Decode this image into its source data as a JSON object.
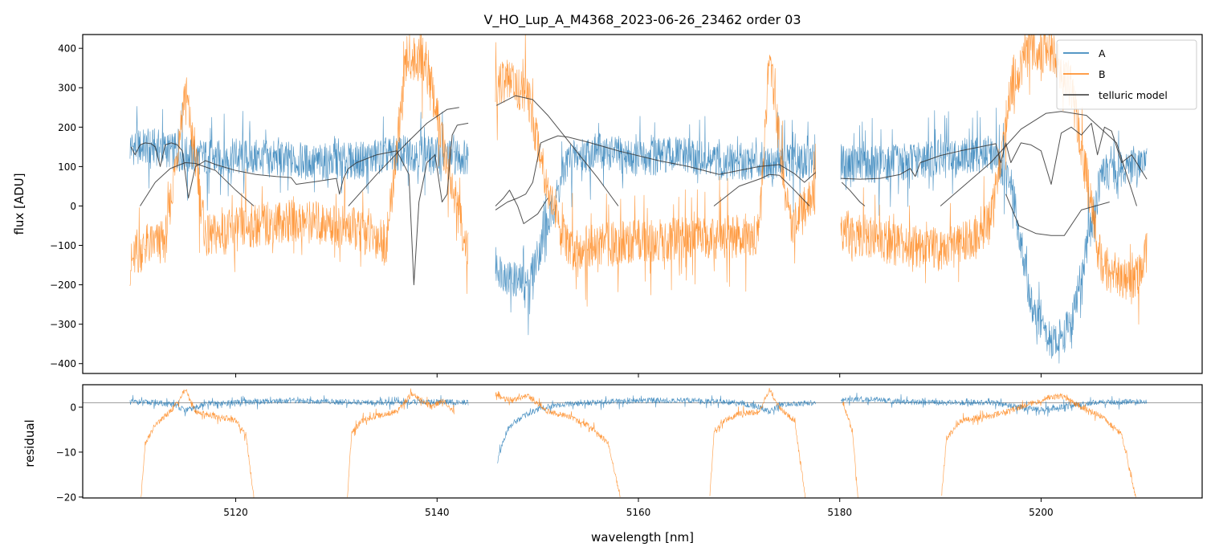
{
  "title": "V_HO_Lup_A_M4368_2023-06-26_23462  order 03",
  "colors": {
    "A": "#1f77b4",
    "B": "#ff7f0e",
    "telluric": "#333333",
    "refline": "#808080"
  },
  "chart_data": [
    {
      "type": "line",
      "panel": "flux",
      "ylabel": "flux [ADU]",
      "xlim": [
        5104.8,
        5216.0
      ],
      "ylim": [
        -425,
        435
      ],
      "yticks": [
        -400,
        -300,
        -200,
        -100,
        0,
        100,
        200,
        300,
        400
      ],
      "yticklabels": [
        "−400",
        "−300",
        "−200",
        "−100",
        "0",
        "100",
        "200",
        "300",
        "400"
      ],
      "xticks": [
        5120,
        5140,
        5160,
        5180,
        5200
      ],
      "legend": {
        "position": "top-right",
        "entries": [
          "A",
          "B",
          "telluric model"
        ]
      },
      "series": [
        {
          "name": "A",
          "segments": [
            {
              "x": [
                5109.5,
                5112,
                5115,
                5118,
                5120,
                5124,
                5128,
                5132,
                5135,
                5138,
                5141,
                5143.1
              ],
              "y": [
                150,
                150,
                130,
                120,
                125,
                120,
                110,
                115,
                130,
                135,
                125,
                125
              ]
            },
            {
              "x": [
                5145.8,
                5147,
                5149,
                5151,
                5153,
                5156,
                5160,
                5164,
                5168,
                5172,
                5175,
                5177.6
              ],
              "y": [
                -150,
                -180,
                -200,
                -50,
                120,
                140,
                120,
                130,
                110,
                115,
                110,
                115
              ]
            },
            {
              "x": [
                5180.1,
                5183,
                5186,
                5189,
                5192,
                5195,
                5197,
                5199,
                5201,
                5203,
                5206,
                5210.5
              ],
              "y": [
                110,
                105,
                110,
                120,
                125,
                135,
                60,
                -250,
                -350,
                -300,
                80,
                115
              ]
            }
          ]
        },
        {
          "name": "B",
          "segments": [
            {
              "x": [
                5109.5,
                5111,
                5113,
                5115,
                5117,
                5120,
                5124,
                5128,
                5132,
                5135,
                5137,
                5139,
                5141,
                5143.1
              ],
              "y": [
                -150,
                -100,
                -90,
                300,
                -80,
                -60,
                -40,
                -40,
                -60,
                -90,
                380,
                360,
                100,
                -120
              ]
            },
            {
              "x": [
                5145.8,
                5147,
                5149,
                5151,
                5153,
                5156,
                5160,
                5164,
                5168,
                5172,
                5173,
                5175,
                5177.6
              ],
              "y": [
                300,
                320,
                280,
                50,
                -110,
                -100,
                -90,
                -85,
                -80,
                -70,
                380,
                -50,
                30
              ]
            },
            {
              "x": [
                5180.1,
                5183,
                5186,
                5189,
                5192,
                5195,
                5197,
                5199,
                5201,
                5203,
                5206,
                5209,
                5210.5
              ],
              "y": [
                -60,
                -80,
                -100,
                -110,
                -100,
                -40,
                300,
                400,
                390,
                300,
                -150,
                -200,
                -120
              ]
            }
          ]
        },
        {
          "name": "telluric model",
          "segments": [
            {
              "x": [
                5109.6,
                5110,
                5110.5,
                5111,
                5111.6,
                5112,
                5112.5,
                5113,
                5113.6,
                5114.2,
                5114.7,
                5115.3,
                5116,
                5117,
                5118,
                5120,
                5122,
                5124,
                5125.5,
                5126,
                5128,
                5130,
                5130.3,
                5130.7,
                5131.2,
                5132,
                5134,
                5136,
                5137.2,
                5137.7,
                5138.2,
                5139,
                5139.8,
                5140.5,
                5141,
                5141.5,
                5142,
                5143.1
              ],
              "y": [
                150,
                130,
                155,
                160,
                158,
                150,
                100,
                155,
                160,
                155,
                140,
                20,
                100,
                115,
                105,
                90,
                80,
                75,
                72,
                55,
                62,
                70,
                30,
                70,
                95,
                110,
                130,
                140,
                80,
                -200,
                10,
                110,
                130,
                10,
                30,
                180,
                205,
                210
              ]
            },
            {
              "x": [
                5145.8,
                5147,
                5148,
                5148.8,
                5149.5,
                5150.3,
                5151,
                5152,
                5153,
                5155,
                5158,
                5162,
                5165,
                5168,
                5170,
                5172,
                5174,
                5175.5,
                5176.5,
                5177.6
              ],
              "y": [
                -10,
                10,
                20,
                30,
                60,
                160,
                168,
                178,
                175,
                162,
                140,
                115,
                100,
                80,
                90,
                100,
                105,
                82,
                60,
                85
              ]
            },
            {
              "x": [
                5180.1,
                5182,
                5184,
                5186,
                5187,
                5187.5,
                5188,
                5190,
                5192,
                5194,
                5195.5,
                5196,
                5196.5,
                5197,
                5198,
                5199,
                5200,
                5201,
                5202,
                5203,
                5204,
                5205,
                5205.6,
                5206.3,
                5207,
                5208,
                5209,
                5210.5
              ],
              "y": [
                70,
                68,
                70,
                80,
                95,
                75,
                110,
                128,
                140,
                150,
                158,
                110,
                160,
                110,
                160,
                155,
                140,
                55,
                185,
                200,
                180,
                210,
                130,
                200,
                190,
                110,
                130,
                68
              ]
            },
            {
              "x": [
                5110.5,
                5112,
                5113.5,
                5114.5,
                5115,
                5116,
                5118,
                5120,
                5121.8
              ],
              "y": [
                0,
                60,
                95,
                105,
                110,
                108,
                90,
                40,
                0
              ]
            },
            {
              "x": [
                5131.2,
                5134,
                5137,
                5139,
                5141,
                5142.2
              ],
              "y": [
                0,
                80,
                160,
                210,
                245,
                250
              ]
            },
            {
              "x": [
                5145.8,
                5146.6,
                5147.2,
                5148,
                5148.6,
                5150,
                5151
              ],
              "y": [
                0,
                20,
                40,
                0,
                -45,
                -20,
                20
              ]
            },
            {
              "x": [
                5145.9,
                5147.8,
                5149.5,
                5151,
                5153.5,
                5156,
                5158
              ],
              "y": [
                255,
                280,
                270,
                230,
                150,
                70,
                0
              ]
            },
            {
              "x": [
                5167.5,
                5170,
                5172.2,
                5173,
                5174,
                5175.5,
                5177
              ],
              "y": [
                0,
                50,
                70,
                80,
                78,
                40,
                0
              ]
            },
            {
              "x": [
                5180.2,
                5181,
                5182,
                5182.5
              ],
              "y": [
                60,
                40,
                10,
                0
              ]
            },
            {
              "x": [
                5190,
                5195,
                5198,
                5200.5,
                5202,
                5204.5,
                5207.5,
                5209.5
              ],
              "y": [
                0,
                110,
                195,
                235,
                240,
                230,
                160,
                0
              ]
            },
            {
              "x": [
                5196.5,
                5197.8,
                5199.5,
                5201,
                5202.3,
                5204,
                5206.8
              ],
              "y": [
                30,
                -50,
                -70,
                -75,
                -75,
                -10,
                10
              ]
            }
          ]
        }
      ]
    },
    {
      "type": "line",
      "panel": "residual",
      "xlabel": "wavelength [nm]",
      "ylabel": "residual",
      "xlim": [
        5104.8,
        5216.0
      ],
      "ylim": [
        -20.2,
        5
      ],
      "yticks": [
        -20,
        -10,
        0
      ],
      "yticklabels": [
        "−20",
        "−10",
        "0"
      ],
      "xticks": [
        5120,
        5140,
        5160,
        5180,
        5200
      ],
      "xticklabels": [
        "5120",
        "5140",
        "5160",
        "5180",
        "5200"
      ],
      "reference_line": 1,
      "series": [
        {
          "name": "A",
          "segments": [
            {
              "x": [
                5109.5,
                5112,
                5114,
                5115,
                5117,
                5120,
                5125,
                5130,
                5135,
                5140,
                5143.1
              ],
              "y": [
                1.2,
                1,
                0.5,
                -0.8,
                0.7,
                1,
                1.5,
                1.2,
                1,
                1.2,
                1
              ]
            },
            {
              "x": [
                5146,
                5146.5,
                5147,
                5148,
                5149,
                5150,
                5152,
                5155,
                5160,
                5165,
                5170,
                5172,
                5173,
                5174,
                5177.6
              ],
              "y": [
                -12,
                -8,
                -5,
                -3,
                -1.5,
                -0.5,
                0.5,
                1,
                1.5,
                1.5,
                1,
                0,
                -1,
                0.5,
                1
              ]
            },
            {
              "x": [
                5180.1,
                5183,
                5186,
                5190,
                5195,
                5198,
                5200,
                5202,
                5205,
                5208,
                5210.5
              ],
              "y": [
                1.5,
                1.8,
                1.2,
                1,
                1,
                0,
                -0.5,
                0,
                1,
                1.2,
                1.2
              ]
            }
          ]
        },
        {
          "name": "B",
          "segments": [
            {
              "x": [
                5110.6,
                5111,
                5112,
                5113.5,
                5114.5,
                5115,
                5116,
                5118,
                5120,
                5121,
                5121.8
              ],
              "y": [
                -20,
                -8,
                -4,
                -1,
                2,
                4,
                -1,
                -2,
                -3,
                -6,
                -20
              ]
            },
            {
              "x": [
                5131.1,
                5131.5,
                5132.5,
                5134,
                5136,
                5137.5,
                5138.5,
                5139.5,
                5140.5,
                5141.7
              ],
              "y": [
                -20,
                -6,
                -3,
                -2,
                -1,
                3,
                1.5,
                0,
                1.5,
                -1
              ]
            },
            {
              "x": [
                5145.8,
                5146.5,
                5147.5,
                5149,
                5151,
                5153,
                5155,
                5157,
                5158.2
              ],
              "y": [
                3,
                2,
                1.5,
                2.5,
                -1,
                -2,
                -4,
                -8,
                -20
              ]
            },
            {
              "x": [
                5167.1,
                5167.5,
                5168.5,
                5170,
                5172,
                5173,
                5174,
                5175.5,
                5176.6
              ],
              "y": [
                -20,
                -6,
                -3,
                -1.5,
                -1,
                4,
                0,
                -3,
                -20
              ]
            },
            {
              "x": [
                5180.3,
                5180.8,
                5181.3,
                5181.8
              ],
              "y": [
                1,
                -2,
                -6,
                -20
              ]
            },
            {
              "x": [
                5190.1,
                5190.6,
                5192,
                5195,
                5198,
                5200.5,
                5202,
                5204,
                5206,
                5208,
                5209.4
              ],
              "y": [
                -20,
                -7,
                -3,
                -2,
                0,
                2,
                2.5,
                0,
                -2,
                -6,
                -20
              ]
            }
          ]
        }
      ]
    }
  ]
}
